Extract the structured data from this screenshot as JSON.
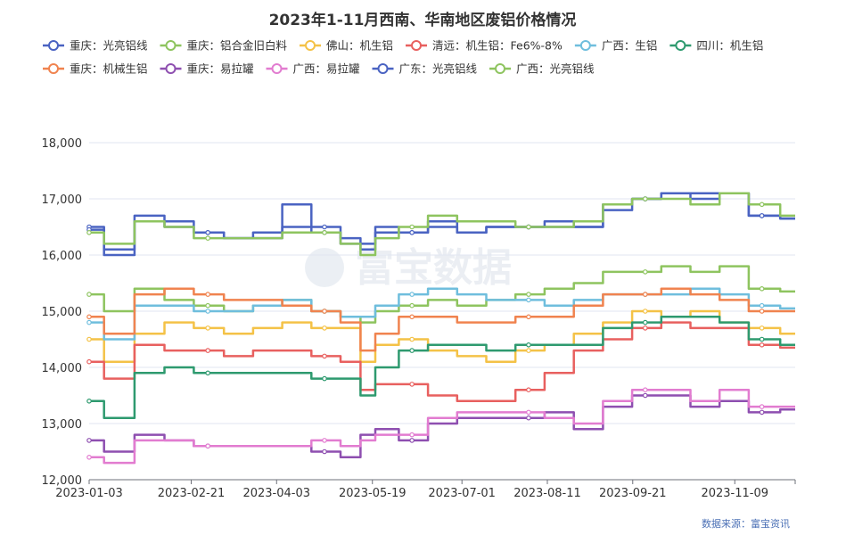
{
  "chart_data": {
    "type": "line",
    "title": "2023年1-11月西南、华南地区废铝价格情况",
    "xlabel": "",
    "ylabel": "",
    "ylim": [
      12000,
      18000
    ],
    "yticks": [
      12000,
      13000,
      14000,
      15000,
      16000,
      17000,
      18000
    ],
    "ytick_labels": [
      "12,000",
      "13,000",
      "14,000",
      "15,000",
      "16,000",
      "17,000",
      "18,000"
    ],
    "x_start": "2023-01-03",
    "x_end": "2023-12-08",
    "xtick_labels": [
      "2023-01-03",
      "2023-02-21",
      "2023-04-03",
      "2023-05-19",
      "2023-07-01",
      "2023-08-11",
      "2023-09-21",
      "2023-11-09"
    ],
    "grid": "horizontal",
    "legend_position": "top",
    "x": [
      "2023-01-03",
      "2023-01-16",
      "2023-02-01",
      "2023-02-14",
      "2023-03-01",
      "2023-03-15",
      "2023-03-29",
      "2023-04-12",
      "2023-04-26",
      "2023-05-10",
      "2023-05-16",
      "2023-05-24",
      "2023-06-07",
      "2023-06-21",
      "2023-07-05",
      "2023-07-19",
      "2023-08-02",
      "2023-08-16",
      "2023-08-30",
      "2023-09-13",
      "2023-09-27",
      "2023-10-11",
      "2023-10-25",
      "2023-11-08",
      "2023-11-22",
      "2023-12-08"
    ],
    "series": [
      {
        "name": "重庆：光亮铝线",
        "color": "#4a63c2",
        "values": [
          16500,
          16000,
          16700,
          16600,
          16400,
          16300,
          16400,
          16900,
          16500,
          16300,
          16200,
          16500,
          16400,
          16600,
          16400,
          16500,
          16500,
          16600,
          16500,
          16800,
          17000,
          17100,
          17100,
          17100,
          16700,
          16650
        ]
      },
      {
        "name": "重庆：铝合金旧白料",
        "color": "#8ec45f",
        "values": [
          15300,
          15000,
          15400,
          15200,
          15100,
          15000,
          15100,
          15200,
          15000,
          14900,
          14800,
          15000,
          15100,
          15200,
          15100,
          15200,
          15300,
          15400,
          15500,
          15700,
          15700,
          15800,
          15700,
          15800,
          15400,
          15350
        ]
      },
      {
        "name": "佛山：机生铝",
        "color": "#f4c247",
        "values": [
          14500,
          14100,
          14600,
          14800,
          14700,
          14600,
          14700,
          14800,
          14700,
          14700,
          14100,
          14400,
          14500,
          14300,
          14200,
          14100,
          14300,
          14400,
          14600,
          14800,
          15000,
          14900,
          15000,
          14800,
          14700,
          14600
        ]
      },
      {
        "name": "清远：机生铝：Fe6%-8%",
        "color": "#e8605f",
        "values": [
          14100,
          13800,
          14400,
          14300,
          14300,
          14200,
          14300,
          14300,
          14200,
          14100,
          13600,
          13700,
          13700,
          13500,
          13400,
          13400,
          13600,
          13900,
          14300,
          14500,
          14700,
          14800,
          14700,
          14700,
          14400,
          14350
        ]
      },
      {
        "name": "广西：生铝",
        "color": "#6fbedd",
        "values": [
          14800,
          14500,
          15100,
          15100,
          15000,
          15000,
          15100,
          15200,
          15000,
          14900,
          14900,
          15100,
          15300,
          15400,
          15300,
          15200,
          15200,
          15100,
          15200,
          15300,
          15300,
          15300,
          15400,
          15300,
          15100,
          15050
        ]
      },
      {
        "name": "四川：机生铝",
        "color": "#2e9a6f",
        "values": [
          13400,
          13100,
          13900,
          14000,
          13900,
          13900,
          13900,
          13900,
          13800,
          13800,
          13500,
          14000,
          14300,
          14400,
          14400,
          14300,
          14400,
          14400,
          14400,
          14700,
          14800,
          14900,
          14900,
          14800,
          14500,
          14400
        ]
      },
      {
        "name": "重庆：机械生铝",
        "color": "#f0834f",
        "values": [
          14900,
          14600,
          15300,
          15400,
          15300,
          15200,
          15200,
          15100,
          15000,
          14800,
          14300,
          14600,
          14900,
          14900,
          14800,
          14800,
          14900,
          14900,
          15100,
          15300,
          15300,
          15400,
          15300,
          15200,
          15000,
          15000
        ]
      },
      {
        "name": "重庆：易拉罐",
        "color": "#8e4fb0",
        "values": [
          12700,
          12500,
          12800,
          12700,
          12600,
          12600,
          12600,
          12600,
          12500,
          12400,
          12800,
          12900,
          12700,
          13000,
          13100,
          13100,
          13100,
          13200,
          12900,
          13300,
          13500,
          13500,
          13300,
          13400,
          13200,
          13250
        ]
      },
      {
        "name": "广西：易拉罐",
        "color": "#e27cd0",
        "values": [
          12400,
          12300,
          12700,
          12700,
          12600,
          12600,
          12600,
          12600,
          12700,
          12600,
          12700,
          12800,
          12800,
          13100,
          13200,
          13200,
          13200,
          13100,
          13000,
          13400,
          13600,
          13600,
          13400,
          13600,
          13300,
          13300
        ]
      },
      {
        "name": "广东：光亮铝线",
        "color": "#4a63c2",
        "values": [
          16450,
          16100,
          16600,
          16500,
          16400,
          16300,
          16300,
          16500,
          16400,
          16200,
          16100,
          16400,
          16400,
          16500,
          16400,
          16500,
          16500,
          16500,
          16500,
          16900,
          17000,
          17100,
          17000,
          17100,
          16700,
          16650
        ]
      },
      {
        "name": "广西：光亮铝线",
        "color": "#8ec45f",
        "values": [
          16400,
          16200,
          16600,
          16500,
          16300,
          16300,
          16300,
          16400,
          16400,
          16200,
          16000,
          16300,
          16500,
          16700,
          16600,
          16600,
          16500,
          16500,
          16600,
          16900,
          17000,
          17000,
          16900,
          17100,
          16900,
          16700
        ]
      }
    ],
    "source_text": "数据来源：富宝资讯",
    "watermark_text": "富宝数据"
  }
}
